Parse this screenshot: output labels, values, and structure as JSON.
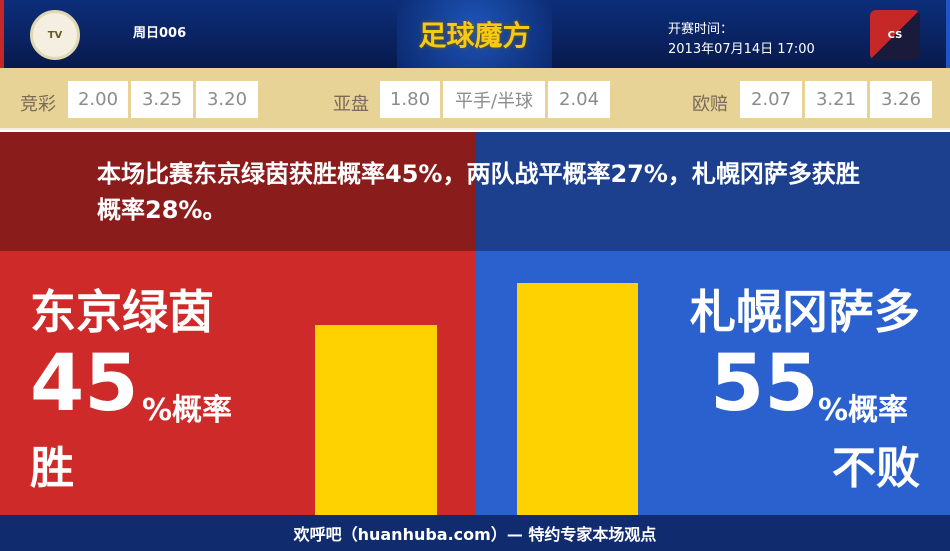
{
  "header": {
    "match_no": "周日006",
    "brand": "足球魔方",
    "start_label": "开赛时间：",
    "start_time": "2013年07月14日 17:00",
    "home_logo": "tokyo-verdy-crest",
    "away_logo": "consadole-sapporo-crest"
  },
  "odds": {
    "jingcai": {
      "label": "竞彩",
      "values": [
        "2.00",
        "3.25",
        "3.20"
      ]
    },
    "yapan": {
      "label": "亚盘",
      "values": [
        "1.80",
        "平手/半球",
        "2.04"
      ]
    },
    "oupei": {
      "label": "欧赔",
      "values": [
        "2.07",
        "3.21",
        "3.26"
      ]
    }
  },
  "summary": "本场比赛东京绿茵获胜概率45%，两队战平概率27%，札幌冈萨多获胜概率28%。",
  "home": {
    "name": "东京绿茵",
    "percent": "45",
    "suffix": "%概率",
    "result": "胜",
    "bar_value": 45,
    "color": "#cf2a2a"
  },
  "away": {
    "name": "札幌冈萨多",
    "percent": "55",
    "suffix": "%概率",
    "result": "不败",
    "bar_value": 55,
    "color": "#2b61cf"
  },
  "bar_color": "#fdd200",
  "footer": "欢呼吧（huanhuba.com）— 特约专家本场观点"
}
